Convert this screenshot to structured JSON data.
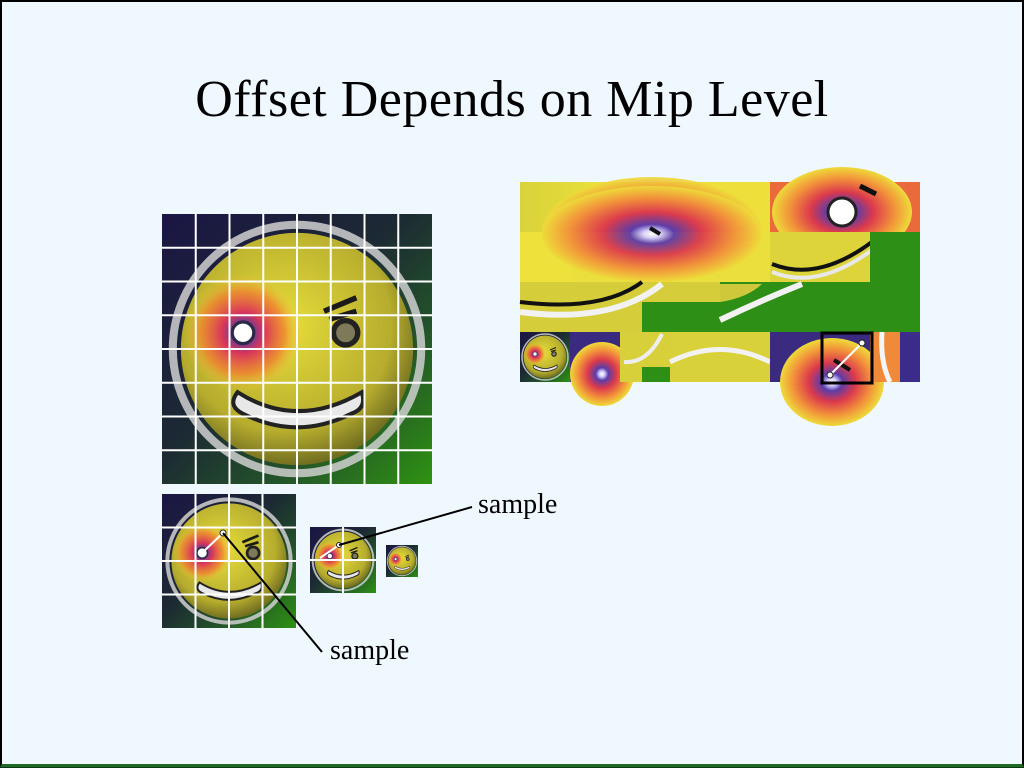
{
  "slide": {
    "title": "Offset Depends on Mip Level",
    "labels": {
      "sample_upper": "sample",
      "sample_lower": "sample"
    }
  },
  "colors": {
    "background": "#f0f8ff",
    "grid_line": "#ffffff",
    "leader_line": "#000000",
    "face_yellow": "#e7e135",
    "spot_red": "#e8473a",
    "spot_purple": "#6a3aa8",
    "corner_dark": "#1b1640",
    "corner_green": "#2d8a16"
  },
  "icons": {
    "face_texture": "smiley-face-texture-icon"
  }
}
